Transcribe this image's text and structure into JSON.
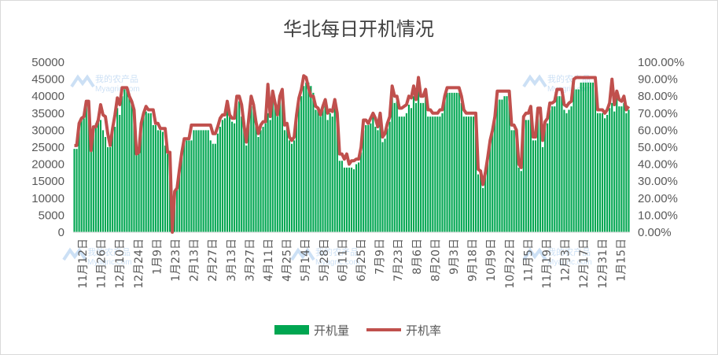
{
  "chart_data": {
    "type": "bar+line",
    "title": "华北每日开机情况",
    "y_left": {
      "min": 0,
      "max": 50000,
      "step": 5000,
      "ticks": [
        "0",
        "5000",
        "10000",
        "15000",
        "20000",
        "25000",
        "30000",
        "35000",
        "40000",
        "45000",
        "50000"
      ]
    },
    "y_right": {
      "min": 0,
      "max": 1.0,
      "step": 0.1,
      "ticks": [
        "0.00%",
        "10.00%",
        "20.00%",
        "30.00%",
        "40.00%",
        "50.00%",
        "60.00%",
        "70.00%",
        "80.00%",
        "90.00%",
        "100.00%"
      ]
    },
    "x_tick_labels": [
      "11月12日",
      "11月26日",
      "12月10日",
      "12月24日",
      "1月9日",
      "1月23日",
      "2月13日",
      "2月27日",
      "3月13日",
      "3月27日",
      "4月11日",
      "4月25日",
      "5月14日",
      "5月28日",
      "6月11日",
      "6月25日",
      "7月9日",
      "7月23日",
      "8月6日",
      "8月20日",
      "9月3日",
      "9月18日",
      "10月9日",
      "10月22日",
      "11月5日",
      "11月19日",
      "12月3日",
      "12月17日",
      "12月31日",
      "1月15日"
    ],
    "series": [
      {
        "name": "开机量",
        "kind": "bar",
        "color": "#00a651",
        "values": [
          24500,
          24500,
          32000,
          33000,
          33500,
          38000,
          37500,
          24000,
          31000,
          32000,
          34000,
          33000,
          30000,
          28000,
          25000,
          25000,
          30000,
          31000,
          36500,
          34500,
          40000,
          42000,
          42000,
          40000,
          38000,
          35000,
          23000,
          23500,
          32000,
          34500,
          35500,
          35000,
          35000,
          31500,
          31500,
          30000,
          30000,
          29500,
          25500,
          23000,
          23500,
          0,
          12000,
          14500,
          18000,
          22000,
          26500,
          27000,
          27000,
          27000,
          30000,
          30000,
          30000,
          30000,
          30000,
          30000,
          30000,
          27000,
          26000,
          26000,
          29000,
          31000,
          33000,
          33500,
          36000,
          34000,
          32500,
          32000,
          38000,
          38500,
          34000,
          30000,
          25500,
          32000,
          37000,
          38500,
          32000,
          28000,
          30000,
          31000,
          32000,
          35000,
          33000,
          40000,
          37000,
          34000,
          39000,
          41000,
          30000,
          31000,
          27000,
          26000,
          27000,
          33000,
          38000,
          40000,
          43000,
          44000,
          44000,
          43000,
          41000,
          36000,
          36000,
          34000,
          36000,
          37000,
          33000,
          35000,
          34000,
          37000,
          33000,
          21000,
          21000,
          19000,
          19000,
          19000,
          19000,
          18500,
          20000,
          20500,
          23500,
          30000,
          31500,
          31500,
          32000,
          34000,
          31000,
          30000,
          34000,
          26500,
          27500,
          30500,
          32500,
          40000,
          38000,
          38500,
          34000,
          34000,
          34000,
          35000,
          37500,
          36500,
          40000,
          38000,
          43000,
          38000,
          38000,
          42000,
          34000,
          34000,
          34000,
          34000,
          34000,
          34000,
          35000,
          39000,
          41000,
          41000,
          41000,
          41000,
          41000,
          41000,
          38000,
          34000,
          34000,
          34000,
          34000,
          34000,
          34000,
          17000,
          17000,
          13000,
          16500,
          21000,
          26000,
          30000,
          33000,
          39000,
          39000,
          39000,
          40000,
          40000,
          40000,
          30000,
          30000,
          30000,
          19000,
          18000,
          32000,
          33000,
          33000,
          35000,
          27000,
          27000,
          34000,
          34000,
          25000,
          31000,
          32000,
          36000,
          37000,
          37000,
          40000,
          40000,
          40000,
          36000,
          35000,
          36000,
          37000,
          43000,
          42000,
          42000,
          44000,
          44000,
          44000,
          44000,
          44000,
          44000,
          44000,
          35000,
          35000,
          35000,
          33500,
          34500,
          36500,
          38000,
          35500,
          40000,
          37000,
          37000,
          38000,
          35000,
          36000
        ],
        "line_values": [
          0.51,
          0.51,
          0.64,
          0.67,
          0.68,
          0.77,
          0.77,
          0.48,
          0.62,
          0.62,
          0.66,
          0.75,
          0.69,
          0.68,
          0.58,
          0.51,
          0.61,
          0.69,
          0.79,
          0.75,
          0.85,
          0.85,
          0.85,
          0.8,
          0.77,
          0.72,
          0.46,
          0.47,
          0.64,
          0.7,
          0.74,
          0.72,
          0.72,
          0.72,
          0.64,
          0.64,
          0.61,
          0.61,
          0.61,
          0.47,
          0.47,
          0.0,
          0.24,
          0.26,
          0.37,
          0.47,
          0.55,
          0.55,
          0.55,
          0.63,
          0.63,
          0.63,
          0.63,
          0.63,
          0.63,
          0.63,
          0.63,
          0.63,
          0.58,
          0.58,
          0.62,
          0.67,
          0.69,
          0.69,
          0.77,
          0.69,
          0.67,
          0.67,
          0.8,
          0.8,
          0.75,
          0.63,
          0.53,
          0.67,
          0.8,
          0.75,
          0.65,
          0.58,
          0.63,
          0.65,
          0.65,
          0.87,
          0.68,
          0.83,
          0.76,
          0.69,
          0.8,
          0.84,
          0.63,
          0.64,
          0.56,
          0.54,
          0.56,
          0.69,
          0.79,
          0.84,
          0.92,
          0.91,
          0.85,
          0.8,
          0.8,
          0.74,
          0.73,
          0.69,
          0.74,
          0.78,
          0.7,
          0.72,
          0.71,
          0.78,
          0.7,
          0.46,
          0.46,
          0.43,
          0.46,
          0.4,
          0.42,
          0.42,
          0.43,
          0.43,
          0.5,
          0.66,
          0.66,
          0.64,
          0.67,
          0.7,
          0.67,
          0.62,
          0.7,
          0.56,
          0.58,
          0.64,
          0.68,
          0.86,
          0.8,
          0.8,
          0.73,
          0.73,
          0.74,
          0.75,
          0.8,
          0.79,
          0.86,
          0.78,
          0.91,
          0.8,
          0.8,
          0.84,
          0.72,
          0.72,
          0.7,
          0.7,
          0.7,
          0.72,
          0.72,
          0.8,
          0.85,
          0.85,
          0.85,
          0.85,
          0.85,
          0.85,
          0.8,
          0.72,
          0.7,
          0.7,
          0.7,
          0.7,
          0.7,
          0.37,
          0.36,
          0.28,
          0.35,
          0.44,
          0.54,
          0.6,
          0.68,
          0.83,
          0.83,
          0.83,
          0.83,
          0.83,
          0.83,
          0.63,
          0.63,
          0.6,
          0.4,
          0.38,
          0.68,
          0.7,
          0.7,
          0.74,
          0.56,
          0.56,
          0.73,
          0.73,
          0.54,
          0.65,
          0.67,
          0.76,
          0.76,
          0.77,
          0.84,
          0.84,
          0.84,
          0.75,
          0.74,
          0.76,
          0.77,
          0.9,
          0.91,
          0.91,
          0.91,
          0.91,
          0.91,
          0.91,
          0.91,
          0.91,
          0.91,
          0.72,
          0.72,
          0.72,
          0.7,
          0.72,
          0.76,
          0.9,
          0.75,
          0.83,
          0.78,
          0.77,
          0.8,
          0.72,
          0.74
        ]
      },
      {
        "name": "开机率",
        "kind": "line",
        "color": "#c0504d"
      }
    ],
    "legend_position": "bottom",
    "grid": false
  }
}
